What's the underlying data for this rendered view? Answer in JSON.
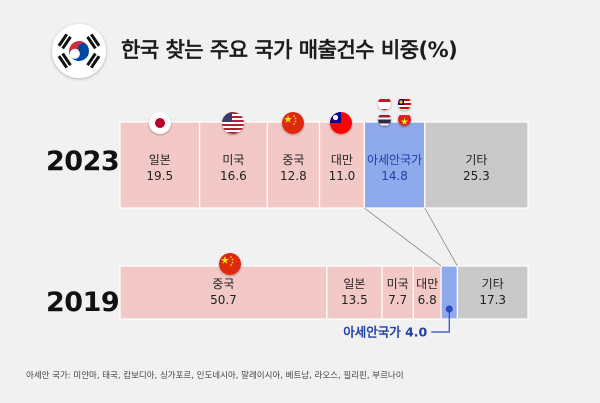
{
  "title": "한국 찾는 주요 국가 매출건수 비중(%)",
  "footnote": "아세안 국가: 미얀마, 태국, 캄보디아, 싱가포르, 인도네시아, 말레이시아, 베트남, 라오스, 필리핀, 부르나이",
  "colors": {
    "pink": "#f3c9c8",
    "blue": "#8ea9ec",
    "gray": "#c9c9c9",
    "asean_text": "#1f3fae",
    "guide": "#2b49c0"
  },
  "icons": [
    "korea-flag-icon",
    "japan-flag-icon",
    "usa-flag-icon",
    "china-flag-icon",
    "taiwan-flag-icon",
    "asean-flags-icon"
  ],
  "chart_data": [
    {
      "type": "bar",
      "orientation": "horizontal-stacked-100",
      "category": "2023",
      "series": [
        {
          "name": "일본",
          "value": 19.5,
          "label": "19.5",
          "color": "pink"
        },
        {
          "name": "미국",
          "value": 16.6,
          "label": "16.6",
          "color": "pink"
        },
        {
          "name": "중국",
          "value": 12.8,
          "label": "12.8",
          "color": "pink"
        },
        {
          "name": "대만",
          "value": 11.0,
          "label": "11.0",
          "color": "pink"
        },
        {
          "name": "아세안국가",
          "value": 14.8,
          "label": "14.8",
          "color": "blue"
        },
        {
          "name": "기타",
          "value": 25.3,
          "label": "25.3",
          "color": "gray"
        }
      ]
    },
    {
      "type": "bar",
      "orientation": "horizontal-stacked-100",
      "category": "2019",
      "series": [
        {
          "name": "중국",
          "value": 50.7,
          "label": "50.7",
          "color": "pink"
        },
        {
          "name": "일본",
          "value": 13.5,
          "label": "13.5",
          "color": "pink"
        },
        {
          "name": "미국",
          "value": 7.7,
          "label": "7.7",
          "color": "pink"
        },
        {
          "name": "대만",
          "value": 6.8,
          "label": "6.8",
          "color": "pink"
        },
        {
          "name": "아세안국가",
          "value": 4.0,
          "label": "",
          "color": "blue"
        },
        {
          "name": "기타",
          "value": 17.3,
          "label": "17.3",
          "color": "gray"
        }
      ]
    }
  ],
  "callout": "아세안국가 4.0"
}
